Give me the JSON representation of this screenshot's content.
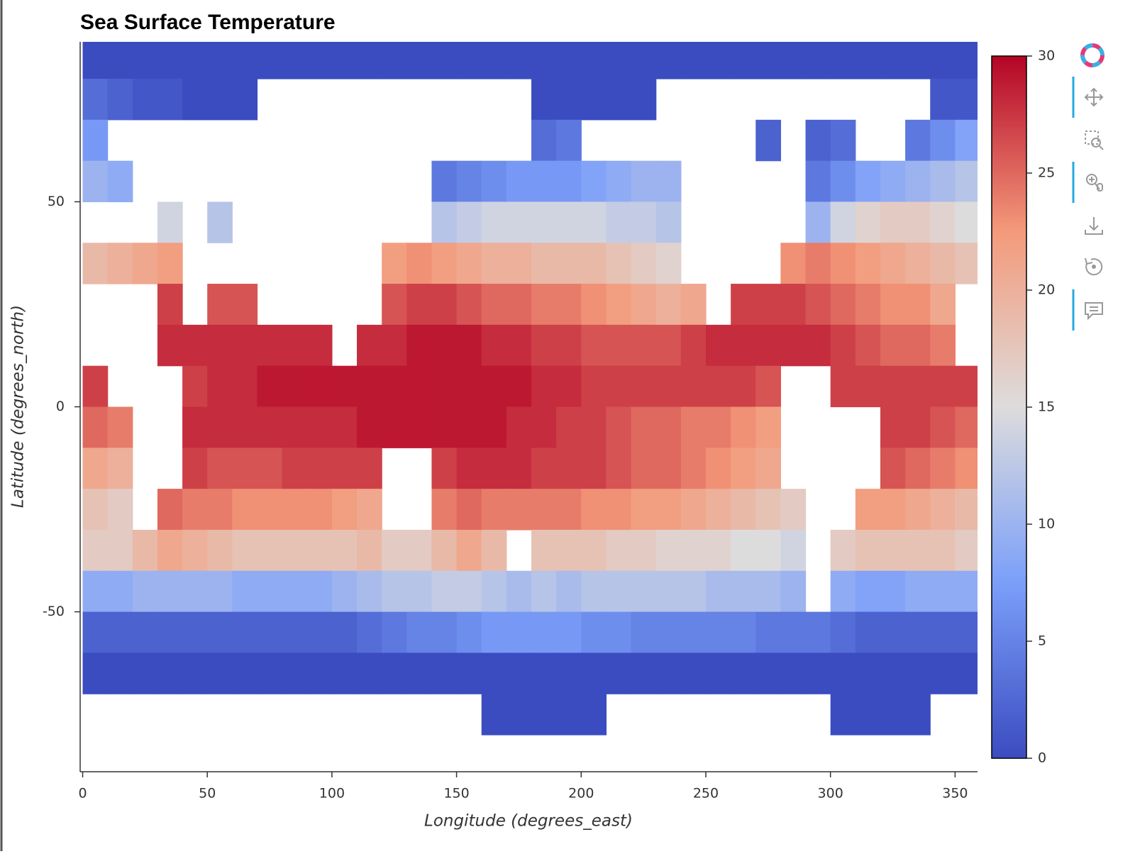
{
  "chart_data": {
    "type": "heatmap",
    "title": "Sea Surface Temperature",
    "x_label": "Longitude (degrees_east)",
    "y_label": "Latitude (degrees_north)",
    "x": [
      5,
      15,
      25,
      35,
      45,
      55,
      65,
      75,
      85,
      95,
      105,
      115,
      125,
      135,
      145,
      155,
      165,
      175,
      185,
      195,
      205,
      215,
      225,
      235,
      245,
      255,
      265,
      275,
      285,
      295,
      305,
      315,
      325,
      335,
      345,
      355
    ],
    "y": [
      85,
      75,
      65,
      55,
      45,
      35,
      25,
      15,
      5,
      -5,
      -15,
      -25,
      -35,
      -45,
      -55,
      -65,
      -75,
      -85
    ],
    "cell_width": 10,
    "cell_height": 10,
    "values": [
      [
        -1,
        -1,
        -1,
        -1,
        -1,
        -1,
        -1,
        -1,
        -1,
        -1,
        -1,
        -1,
        -1,
        -1,
        -1,
        -1,
        -1,
        -1,
        -1,
        -1,
        -1,
        -1,
        -1,
        -1,
        -1,
        -1,
        -1,
        -1,
        -1,
        -1,
        -1,
        -1,
        -1,
        -1,
        -1,
        -1
      ],
      [
        3,
        2,
        1,
        1,
        0,
        0,
        0,
        null,
        null,
        null,
        null,
        null,
        null,
        null,
        null,
        null,
        null,
        null,
        0,
        0,
        0,
        0,
        0,
        null,
        null,
        null,
        null,
        null,
        null,
        null,
        null,
        null,
        null,
        null,
        1,
        1
      ],
      [
        7,
        null,
        null,
        null,
        null,
        null,
        null,
        null,
        null,
        null,
        null,
        null,
        null,
        null,
        null,
        null,
        null,
        null,
        3,
        4,
        null,
        null,
        null,
        null,
        null,
        null,
        null,
        2,
        null,
        2,
        3,
        null,
        null,
        4,
        6,
        8
      ],
      [
        10,
        9,
        null,
        null,
        null,
        null,
        null,
        null,
        null,
        null,
        null,
        null,
        null,
        null,
        4,
        5,
        6,
        7,
        7,
        7,
        8,
        9,
        10,
        10,
        null,
        null,
        null,
        null,
        null,
        4,
        6,
        8,
        9,
        10,
        11,
        12
      ],
      [
        null,
        null,
        null,
        14,
        null,
        12,
        null,
        null,
        null,
        null,
        null,
        null,
        null,
        null,
        12,
        13,
        14,
        14,
        14,
        14,
        14,
        13,
        13,
        12,
        null,
        null,
        null,
        null,
        null,
        10,
        14,
        16,
        17,
        17,
        16,
        15
      ],
      [
        19,
        20,
        21,
        22,
        null,
        null,
        null,
        null,
        null,
        null,
        null,
        null,
        22,
        23,
        22,
        21,
        20,
        20,
        19,
        19,
        19,
        18,
        17,
        16,
        null,
        null,
        null,
        null,
        23,
        24,
        23,
        22,
        21,
        20,
        19,
        18
      ],
      [
        null,
        null,
        null,
        27,
        null,
        26,
        26,
        null,
        null,
        null,
        null,
        null,
        26,
        27,
        27,
        26,
        25,
        25,
        24,
        24,
        23,
        22,
        21,
        20,
        21,
        null,
        27,
        27,
        27,
        26,
        25,
        24,
        23,
        23,
        21,
        null
      ],
      [
        null,
        null,
        null,
        28,
        28,
        28,
        28,
        28,
        28,
        28,
        null,
        28,
        28,
        29,
        29,
        29,
        28,
        28,
        27,
        27,
        26,
        26,
        26,
        26,
        27,
        28,
        28,
        28,
        28,
        28,
        27,
        26,
        25,
        25,
        24,
        null
      ],
      [
        27,
        null,
        null,
        null,
        27,
        28,
        28,
        29,
        29,
        29,
        29,
        29,
        29,
        29,
        29,
        29,
        29,
        29,
        28,
        28,
        27,
        27,
        27,
        27,
        27,
        27,
        27,
        26,
        null,
        null,
        27,
        27,
        27,
        27,
        27,
        27
      ],
      [
        25,
        24,
        null,
        null,
        28,
        28,
        28,
        28,
        28,
        28,
        28,
        29,
        29,
        29,
        29,
        29,
        29,
        28,
        28,
        27,
        27,
        26,
        25,
        25,
        24,
        24,
        23,
        22,
        null,
        null,
        null,
        null,
        27,
        27,
        26,
        25
      ],
      [
        21,
        20,
        null,
        null,
        27,
        26,
        26,
        26,
        27,
        27,
        27,
        27,
        null,
        null,
        27,
        28,
        28,
        28,
        27,
        27,
        27,
        26,
        25,
        25,
        24,
        23,
        22,
        21,
        null,
        null,
        null,
        null,
        26,
        25,
        24,
        23
      ],
      [
        18,
        17,
        null,
        25,
        24,
        24,
        23,
        23,
        23,
        23,
        22,
        21,
        null,
        null,
        24,
        25,
        24,
        24,
        24,
        24,
        23,
        23,
        22,
        22,
        21,
        20,
        19,
        18,
        17,
        null,
        null,
        22,
        22,
        21,
        20,
        19
      ],
      [
        17,
        17,
        19,
        21,
        20,
        19,
        18,
        18,
        18,
        18,
        18,
        19,
        17,
        17,
        19,
        21,
        19,
        null,
        18,
        18,
        18,
        17,
        17,
        16,
        16,
        16,
        15,
        15,
        14,
        null,
        17,
        18,
        18,
        18,
        18,
        17
      ],
      [
        9,
        9,
        10,
        10,
        10,
        10,
        9,
        9,
        9,
        9,
        10,
        11,
        12,
        12,
        13,
        13,
        12,
        11,
        12,
        11,
        12,
        12,
        12,
        12,
        12,
        11,
        11,
        11,
        10,
        null,
        9,
        8,
        8,
        9,
        9,
        9
      ],
      [
        2,
        2,
        2,
        2,
        2,
        2,
        2,
        2,
        2,
        2,
        2,
        3,
        4,
        5,
        5,
        6,
        7,
        7,
        7,
        7,
        6,
        6,
        5,
        5,
        5,
        5,
        5,
        4,
        4,
        4,
        3,
        2,
        2,
        2,
        2,
        2
      ],
      [
        -1,
        -1,
        -1,
        -1,
        -1,
        -1,
        -1,
        -1,
        -1,
        -1,
        -1,
        -1,
        -1,
        -1,
        -1,
        -1,
        -1,
        -1,
        -1,
        -1,
        -1,
        -1,
        -1,
        -1,
        -1,
        -1,
        -1,
        -1,
        -1,
        -1,
        -1,
        -1,
        -1,
        -1,
        -1,
        -1
      ],
      [
        null,
        null,
        null,
        null,
        null,
        null,
        null,
        null,
        null,
        null,
        null,
        null,
        null,
        null,
        null,
        null,
        -1,
        -1,
        -1,
        -1,
        -1,
        null,
        null,
        null,
        null,
        null,
        null,
        null,
        null,
        null,
        -1,
        -1,
        -1,
        -1,
        null,
        null
      ],
      [
        null,
        null,
        null,
        null,
        null,
        null,
        null,
        null,
        null,
        null,
        null,
        null,
        null,
        null,
        null,
        null,
        null,
        null,
        null,
        null,
        null,
        null,
        null,
        null,
        null,
        null,
        null,
        null,
        null,
        null,
        null,
        null,
        null,
        null,
        null,
        null
      ]
    ],
    "xlim": [
      -1,
      359
    ],
    "ylim": [
      -89,
      89
    ],
    "xticks": [
      0,
      50,
      100,
      150,
      200,
      250,
      300,
      350
    ],
    "yticks": [
      -50,
      0,
      50
    ],
    "clim": [
      0,
      30
    ],
    "cticks": [
      0,
      5,
      10,
      15,
      20,
      25,
      30
    ],
    "colormap": [
      "#3b4cc0",
      "#7b9ff9",
      "#dddcdc",
      "#f49a7b",
      "#b40426"
    ]
  }
}
